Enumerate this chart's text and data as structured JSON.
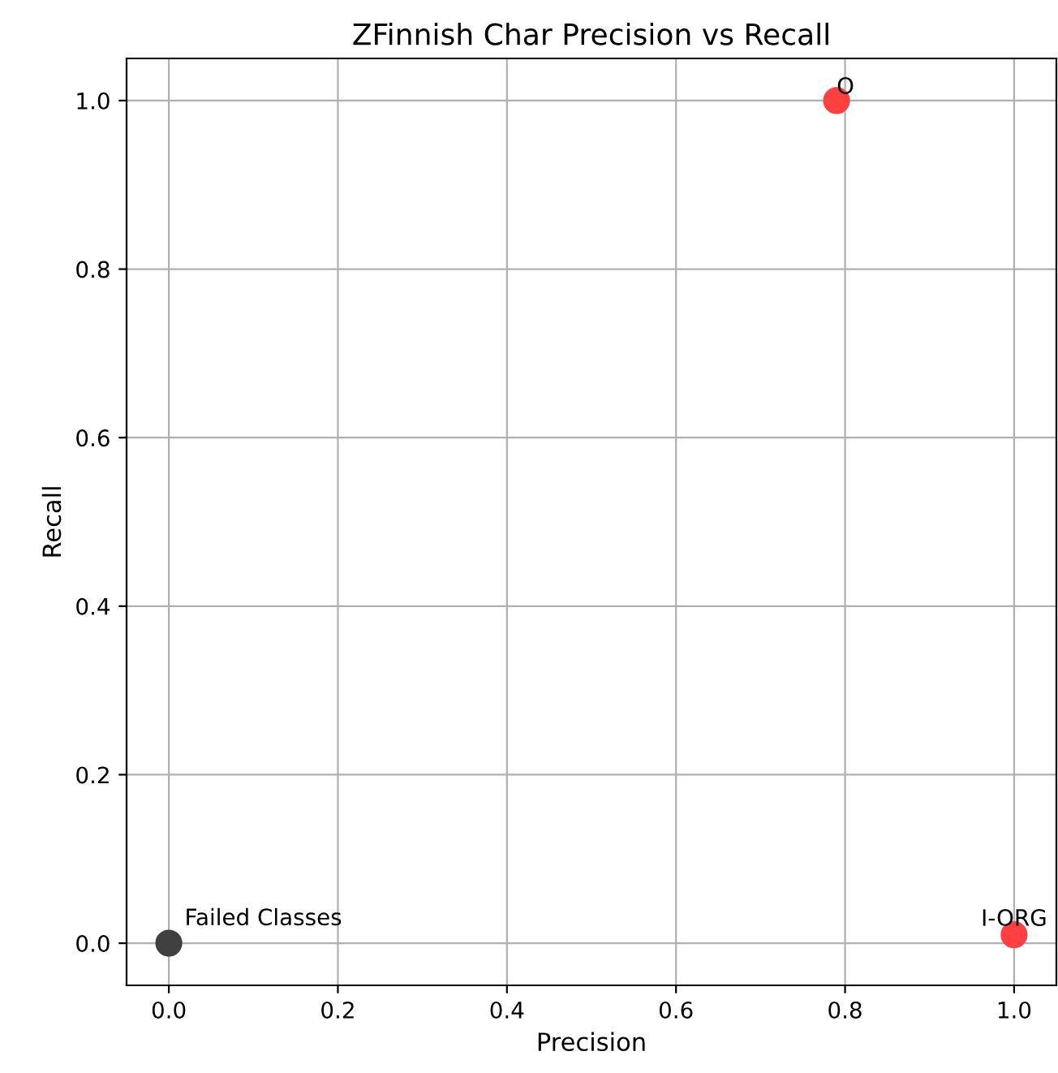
{
  "chart_data": {
    "type": "scatter",
    "title": "ZFinnish Char Precision vs Recall",
    "xlabel": "Precision",
    "ylabel": "Recall",
    "series": [
      {
        "color": "#ff4040",
        "x": [
          0.79,
          1.0
        ],
        "values": [
          1.0,
          0.01
        ]
      },
      {
        "color": "#404040",
        "x": [
          0.0
        ],
        "values": [
          0.0
        ]
      }
    ],
    "annotations": [
      {
        "text": "O",
        "x": 0.79,
        "y": 1.0
      },
      {
        "text": "I-ORG",
        "x": 1.0,
        "y": 0.01
      },
      {
        "text": "Failed Classes",
        "x": 0.0,
        "y": 0.0
      }
    ],
    "xlim": [
      -0.05,
      1.05
    ],
    "ylim": [
      -0.05,
      1.05
    ],
    "xticks": [
      {
        "value": 0,
        "label": "0.0"
      },
      0.2,
      0.4,
      0.6,
      0.8,
      {
        "value": 1,
        "label": "1.0"
      }
    ],
    "yticks": [
      {
        "value": 0,
        "label": "0.0"
      },
      0.2,
      0.4,
      0.6,
      0.8,
      {
        "value": 1,
        "label": "1.0"
      }
    ],
    "grid": true,
    "marker": "circle"
  }
}
